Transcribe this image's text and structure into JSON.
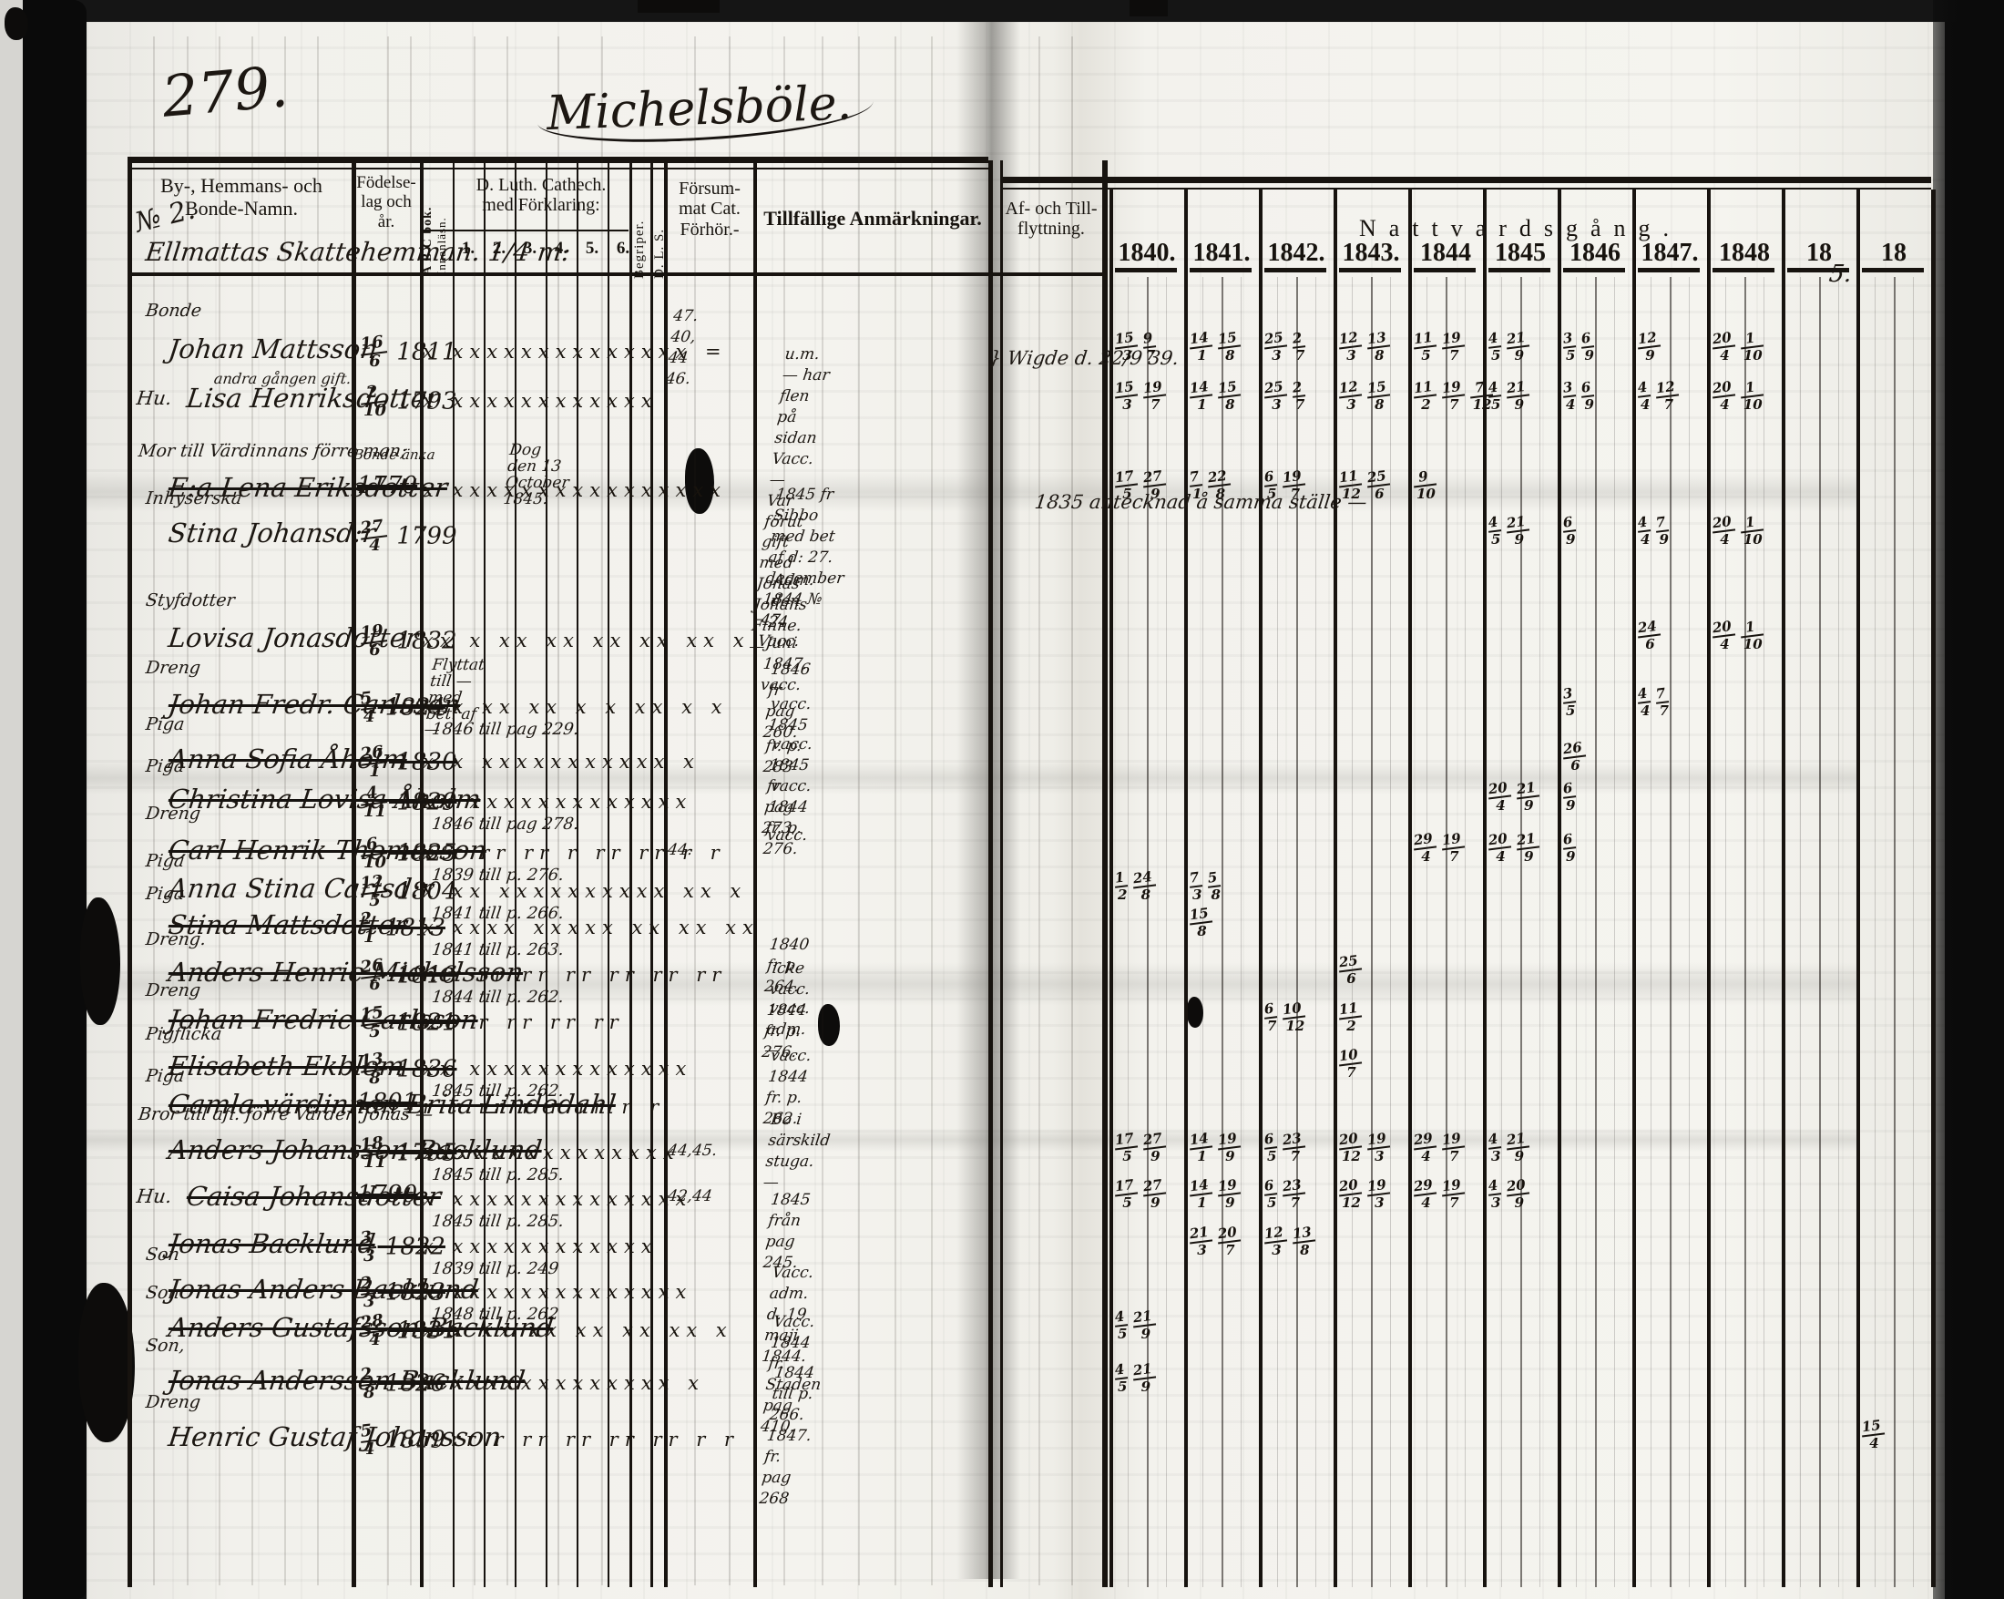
{
  "page": {
    "number": "279.",
    "title": "Michelsböle.",
    "no_label": "№ 2.",
    "estate_line": "Ellmattas Skattehemman. 1/4 m:",
    "corner_mark": "5."
  },
  "headers": {
    "name_col": "By-, Hemmans- och\nBonde-Namn.",
    "birth_col": "Födelse-\nlag och\når.",
    "abc_line1": "A B C bok.",
    "abc_line2": "Innanläsn.",
    "cat_col": "D. Luth. Cathech.\nmed Förklaring:",
    "cat_subs": [
      "1.",
      "2.",
      "3.",
      "4.",
      "5.",
      "6."
    ],
    "begriper_col": "Begriper.",
    "dls_col": "D. L. S.",
    "forsummat_col": "Försum-\nmat Cat.\nFörhör.-",
    "anm_col": "Tillfällige Anmärkningar.",
    "flytt_col": "Af- och Till-\nflyttning.",
    "nattvard_col": "Nattvardsgång.",
    "years": [
      "1840.",
      "1841.",
      "1842.",
      "1843.",
      "1844",
      "1845",
      "1846",
      "1847.",
      "1848",
      "18",
      "18"
    ]
  },
  "rows": [
    {
      "role": "Bonde",
      "name": "Johan Mattsson",
      "sub": "andra gången gift.",
      "crossed": false,
      "birth": "16/6 1811",
      "marks": "x  xxxxxxxxxxxxxx  =",
      "forsummat": "47.\n40, 44 46.",
      "anm": "u.m. — har flen på sidan\nVacc. —\nVar förut gift med Jonas Johans\nFinne. —",
      "flytt": "} Wigde d. 22/9 39.",
      "comm": [
        "15/3 9/7",
        "14/1 15/8",
        "25/3 2/7",
        "12/3 13/8",
        "11/5 19/7",
        "4/5 21/9",
        "3/5 6/9",
        "12/9",
        "20/4 1/10",
        "",
        ""
      ]
    },
    {
      "role": "Hu.",
      "name": "Lisa Henriksdotter",
      "crossed": false,
      "birth": "2/10 1793",
      "marks": "x  xxxxxxxxxxxx",
      "comm": [
        "15/3 19/7",
        "14/1 15/8",
        "25/3 2/7",
        "12/3 15/8",
        "11/2 19/7 7/12",
        "4/5 21/9",
        "3/4 6/9",
        "4/4 12/7",
        "20/4 1/10",
        "",
        ""
      ]
    },
    {
      "group": "Mor till Värdinnans förre man;",
      "name": "E:a Lena Eriksdotter",
      "crossed": true,
      "birth_pre": "Bonde änka",
      "birth": "1770",
      "marks": "x  xxxxxxxxxxxxxxxx",
      "over_note": "Dog den 13 October 1845.",
      "comm": [
        "17/5 27/9",
        "7/1 22/8",
        "6/5 19/7",
        "11/12 25/6",
        "9/10",
        "",
        "",
        "",
        "",
        "",
        ""
      ]
    },
    {
      "role": "Inhyserska",
      "name": "Stina Johansd:r",
      "crossed": false,
      "birth": "27/4 1799",
      "marks": "",
      "anm": "1845 fr Sibbo med bet af d: 27.\ndecember 1844 № 47.\nVacc.",
      "flytt": "1835 antecknad å samma ställe —",
      "comm": [
        "",
        "",
        "",
        "",
        "",
        "4/5 21/9",
        "6/9",
        "4/4 7/9",
        "20/4 1/10",
        "",
        ""
      ]
    },
    {
      "role": "Styfdotter",
      "name": "Lovisa Jonasdotter",
      "crossed": false,
      "birth": "19/6 1832",
      "marks": "xx x xx xx xx xx xx x",
      "anm": "Adm. den 24 Juni 1847.\nvacc.",
      "comm": [
        "",
        "",
        "",
        "",
        "",
        "",
        "",
        "24/6",
        "20/4 1/10",
        "",
        ""
      ]
    },
    {
      "role": "Dreng",
      "name": "Johan Fredr. Carlsson",
      "crossed": true,
      "birth": "5/4 1824",
      "marks": "x x xx xx x x xx x x",
      "over_note": "Flyttat till — med bet. af —",
      "mid_note": "1846 till pag 229.",
      "anm": "1846 fr pag 260.",
      "comm": [
        "",
        "",
        "",
        "",
        "",
        "",
        "3/5",
        "4/4 7/7",
        "",
        "",
        ""
      ]
    },
    {
      "role": "Piga",
      "name": "Anna Sofia Åholm",
      "crossed": true,
      "birth": "26/1 1830",
      "marks": "x x xxxxxxxxxxx x",
      "anm": "vacc.\n1845 fr. p: 283",
      "comm": [
        "",
        "",
        "",
        "",
        "",
        "",
        "26/6",
        "",
        "",
        "",
        ""
      ]
    },
    {
      "role": "Piga",
      "name": "Christina Lovisa Åholm",
      "crossed": true,
      "birth": "4/11 1829",
      "marks": "xx xxxxxxxxxxxxx",
      "mid_note": "1846 till pag 278.",
      "anm": "vacc.\n1845 fr pag 273.",
      "comm": [
        "",
        "",
        "",
        "",
        "",
        "20/4 21/9",
        "6/9",
        "",
        "",
        "",
        ""
      ]
    },
    {
      "role": "Dreng",
      "name": "Carl Henrik Thomasson",
      "crossed": true,
      "birth": "6/10 1825",
      "marks": "x r rr rr r rr rr r r",
      "mid_note": "1839 till p. 276.",
      "forsummat": "44.",
      "anm": "vacc.\n1844 fr. p. 276.",
      "comm": [
        "",
        "",
        "",
        "",
        "29/4 19/7",
        "20/4 21/9",
        "6/9",
        "",
        "",
        "",
        ""
      ]
    },
    {
      "role": "Piga",
      "name": "Anna Stina Carlsd:r",
      "crossed": false,
      "birth": "12/5 1804",
      "marks": "x  xx xxxxxxxxxx xx x",
      "mid_note": "1841 till p. 266.",
      "anm": "vacc.",
      "comm": [
        "1/2 24/8",
        "7/3 5/8",
        "",
        "",
        "",
        "",
        "",
        "",
        "",
        "",
        ""
      ]
    },
    {
      "role": "Piga",
      "name": "Stina Mattsdotter",
      "crossed": true,
      "birth": "2/1 1813",
      "marks": "x xxxx xxxxx xx xx xx",
      "mid_note": "1841 till p. 263.",
      "anm": "1840 fr p. 264.",
      "comm": [
        "",
        "15/8",
        "",
        "",
        "",
        "",
        "",
        "",
        "",
        "",
        ""
      ]
    },
    {
      "role": "Dreng.",
      "name": "Anders Henric Michelsson",
      "crossed": true,
      "birth": "26/6 1816",
      "marks": "r r rr rr rr rr rr rr",
      "mid_note": "1844 till p. 262.",
      "anm": "icke vacc.\n1844 fr. p. 276.",
      "comm": [
        "",
        "",
        "",
        "25/6",
        "",
        "",
        "",
        "",
        "",
        "",
        ""
      ]
    },
    {
      "role": "Dreng",
      "name": "Johan Fredric Carlsson",
      "crossed": true,
      "birth": "15/5 1821",
      "marks": "r r r  rr  rr rr",
      "anm": "vacc.\nadm. —",
      "comm": [
        "",
        "",
        "6/7 10/12",
        "11/2",
        "",
        "",
        "",
        "",
        "",
        "",
        ""
      ]
    },
    {
      "role": "Pigflicka",
      "name": "Elisabeth Ekblom",
      "crossed": true,
      "birth": "13/8 1836",
      "marks": "xx xxxxxxxxxxxxx",
      "mid_note": "1845 till p. 262.",
      "anm": "vacc.\n1844 fr. p. 262.",
      "comm": [
        "",
        "",
        "",
        "10/7",
        "",
        "",
        "",
        "",
        "",
        "",
        ""
      ]
    },
    {
      "role": "Piga",
      "name": "Gamla värdinnan Brita Lindedahl",
      "crossed": true,
      "birth": "1801",
      "marks": "r r rr r r rr r r",
      "comm": [
        "",
        "",
        "",
        "",
        "",
        "",
        "",
        "",
        "",
        "",
        ""
      ]
    },
    {
      "group": "Bror till afl. förre Värden Jonas —",
      "name": "Anders Johansson Backlund",
      "crossed": true,
      "birth": "18/11 1795",
      "marks": "xxxxxxxxxxxxxxx",
      "mid_note": "1845 till p. 285.",
      "forsummat": "44,45.",
      "anm": "Bo i särskild stuga. —",
      "comm": [
        "17/5 27/9",
        "14/1 19/9",
        "6/5 23/7",
        "20/12 19/3",
        "29/4 19/7",
        "4/3 21/9",
        "",
        "",
        "",
        "",
        ""
      ]
    },
    {
      "role": "Hu.",
      "name": "Caisa Johansdotter",
      "crossed": true,
      "birth": "1790",
      "marks": "x xxxxxxxxxxxxxx",
      "mid_note": "1845 till p. 285.",
      "forsummat": "42,44",
      "anm": "1845 från pag 245.",
      "comm": [
        "17/5 27/9",
        "14/1 19/9",
        "6/5 23/7",
        "20/12 19/3",
        "29/4 19/7",
        "4/3 20/9",
        "",
        "",
        "",
        "",
        ""
      ]
    },
    {
      "role": "",
      "name": "Jonas Backlund",
      "crossed": true,
      "birth": "3/3 1822",
      "marks": "x xxxxxxxxxxxx",
      "mid_note": "1839 till p. 249",
      "comm": [
        "",
        "21/3 20/7",
        "12/3 13/8",
        "",
        "",
        "",
        "",
        "",
        "",
        "",
        ""
      ]
    },
    {
      "role": "Son",
      "name": "Jonas Anders Backlund",
      "crossed": true,
      "birth": "2/3 1823",
      "marks": "x xxxxxxxxxxxxxx",
      "mid_note": "1848 till p. 262",
      "anm": "Vacc.\nadm. d. 19 maji 1844.",
      "comm": [
        "",
        "",
        "",
        "",
        "",
        "",
        "",
        "",
        "",
        "",
        ""
      ]
    },
    {
      "role": "Son",
      "name": "Anders Gustafsson Backlund",
      "crossed": true,
      "birth": "28/4 1831",
      "marks": "x x xx xx xx xx xx x",
      "anm": "Vacc.\n1844 fr. Staden pag 410.",
      "comm": [
        "4/5 21/9",
        "",
        "",
        "",
        "",
        "",
        "",
        "",
        "",
        "",
        ""
      ]
    },
    {
      "role": "Son,",
      "name": "Jonas Andersson Backlund",
      "crossed": true,
      "birth": "2/8 1826",
      "marks": "x xxxxxxxxxxxxx x",
      "anm": "1844 till p. 266.\n1847. fr. pag 268",
      "comm": [
        "4/5 21/9",
        "",
        "",
        "",
        "",
        "",
        "",
        "",
        "",
        "",
        ""
      ]
    },
    {
      "role": "Dreng",
      "name": "Henric Gustaf Johansson",
      "crossed": false,
      "birth": "5/4 1819",
      "marks": "r rr r rr rr rr rr r r",
      "comm": [
        "",
        "",
        "",
        "",
        "",
        "",
        "",
        "",
        "",
        "",
        "15/4"
      ]
    }
  ]
}
